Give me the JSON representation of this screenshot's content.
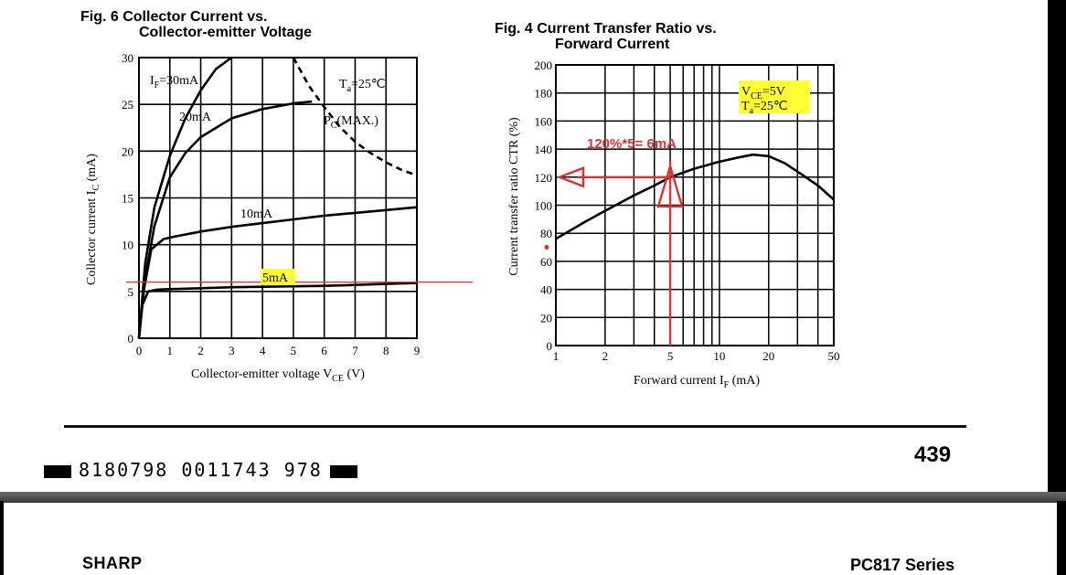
{
  "figures": {
    "fig6": {
      "title_line1": "Fig. 6 Collector Current vs.",
      "title_line2": "Collector-emitter Voltage"
    },
    "fig4": {
      "title_line1": "Fig. 4 Current Transfer Ratio vs.",
      "title_line2": "Forward Current"
    }
  },
  "footer": {
    "barcode_text": "8180798 0011743 978",
    "page_number": "439",
    "brand": "SHARP",
    "series": "PC817 Series"
  },
  "chart_data": [
    {
      "type": "line",
      "title": "Fig. 6 Collector Current vs. Collector-emitter Voltage",
      "xlabel": "Collector-emitter voltage V",
      "xlabel_sub": "CE",
      "xlabel_unit": "(V)",
      "ylabel": "Collector current I",
      "ylabel_sub": "C",
      "ylabel_unit": "(mA)",
      "xlim": [
        0,
        9
      ],
      "ylim": [
        0,
        30
      ],
      "x_ticks": [
        "0",
        "1",
        "2",
        "3",
        "4",
        "5",
        "6",
        "7",
        "8",
        "9"
      ],
      "y_ticks": [
        "0",
        "5",
        "10",
        "15",
        "20",
        "25",
        "30"
      ],
      "grid": true,
      "annotations": {
        "if_label": "I",
        "if_sub": "F",
        "if_value": "=30mA",
        "ta_label": "T",
        "ta_sub": "a",
        "ta_value": "=25℃",
        "pc_label": "P",
        "pc_sub": "C",
        "pc_value": "(MAX.)"
      },
      "series": [
        {
          "name": "30mA",
          "x": [
            0,
            0.2,
            0.5,
            1.0,
            1.5,
            2.0,
            2.5,
            3.0
          ],
          "y": [
            0,
            8,
            14,
            19.5,
            23.5,
            26.5,
            28.8,
            30
          ]
        },
        {
          "name": "20mA",
          "x": [
            0,
            0.2,
            0.5,
            1.0,
            1.5,
            2.0,
            3.0,
            4.0,
            5.0,
            5.6
          ],
          "y": [
            0,
            6.5,
            12,
            17.2,
            19.8,
            21.5,
            23.5,
            24.5,
            25.1,
            25.3
          ]
        },
        {
          "name": "10mA",
          "x": [
            0,
            0.15,
            0.4,
            0.8,
            1.2,
            2.0,
            3.0,
            4.0,
            5.0,
            6.0,
            7.0,
            8.0,
            9.0
          ],
          "y": [
            0,
            5,
            9.5,
            10.6,
            10.9,
            11.4,
            11.9,
            12.3,
            12.7,
            13.1,
            13.4,
            13.7,
            14.0
          ]
        },
        {
          "name": "5mA",
          "x": [
            0,
            0.1,
            0.3,
            0.6,
            1.0,
            2.0,
            3.0,
            4.0,
            5.0,
            6.0,
            7.0,
            8.0,
            9.0
          ],
          "y": [
            0,
            3.5,
            5.0,
            5.2,
            5.25,
            5.35,
            5.45,
            5.5,
            5.55,
            5.6,
            5.7,
            5.8,
            5.9
          ]
        },
        {
          "name": "PC(MAX.)",
          "dashed": true,
          "x": [
            5.0,
            5.5,
            6.0,
            6.5,
            7.0,
            7.5,
            8.0,
            8.5,
            9.0
          ],
          "y": [
            30,
            27.0,
            24.7,
            22.6,
            21.0,
            19.8,
            18.8,
            18.0,
            17.4
          ]
        }
      ],
      "highlights": {
        "horizontal_marker_y": 6.0,
        "marker_color": "#e03030",
        "highlight_color": "#ffff33",
        "highlighted_label": "5mA"
      }
    },
    {
      "type": "line",
      "title": "Fig. 4 Current Transfer Ratio vs. Forward Current",
      "xlabel": "Forward current I",
      "xlabel_sub": "F",
      "xlabel_unit": "(mA)",
      "ylabel": "Current transfer ratio CTR (%)",
      "x_scale": "log",
      "xlim": [
        1,
        50
      ],
      "ylim": [
        0,
        200
      ],
      "x_tick_labels": [
        {
          "value": 1,
          "label": "1"
        },
        {
          "value": 2,
          "label": "2"
        },
        {
          "value": 5,
          "label": "5"
        },
        {
          "value": 10,
          "label": "10"
        },
        {
          "value": 20,
          "label": "20"
        },
        {
          "value": 50,
          "label": "50"
        }
      ],
      "x_grid_values": [
        1,
        2,
        3,
        4,
        5,
        6,
        7,
        8,
        9,
        10,
        20,
        30,
        40,
        50
      ],
      "y_ticks": [
        "0",
        "20",
        "40",
        "60",
        "80",
        "100",
        "120",
        "140",
        "160",
        "180",
        "200"
      ],
      "grid": true,
      "annotations": {
        "vce_label": "V",
        "vce_sub": "CE",
        "vce_value": "=5V",
        "ta_label": "T",
        "ta_sub": "a",
        "ta_value": "=25℃",
        "red_note": "120%*5= 6mA"
      },
      "series": [
        {
          "name": "CTR",
          "x": [
            1,
            1.5,
            2,
            3,
            4,
            5,
            7,
            10,
            13,
            16,
            20,
            25,
            30,
            40,
            50
          ],
          "y": [
            76,
            88,
            96,
            107,
            114,
            120,
            126,
            131,
            134,
            136,
            135,
            130,
            124,
            114,
            104
          ]
        }
      ],
      "highlights": {
        "marker_color": "#e03030",
        "highlight_color": "#ffff33",
        "arrow_if": 5,
        "arrow_ctr": 120
      }
    }
  ]
}
